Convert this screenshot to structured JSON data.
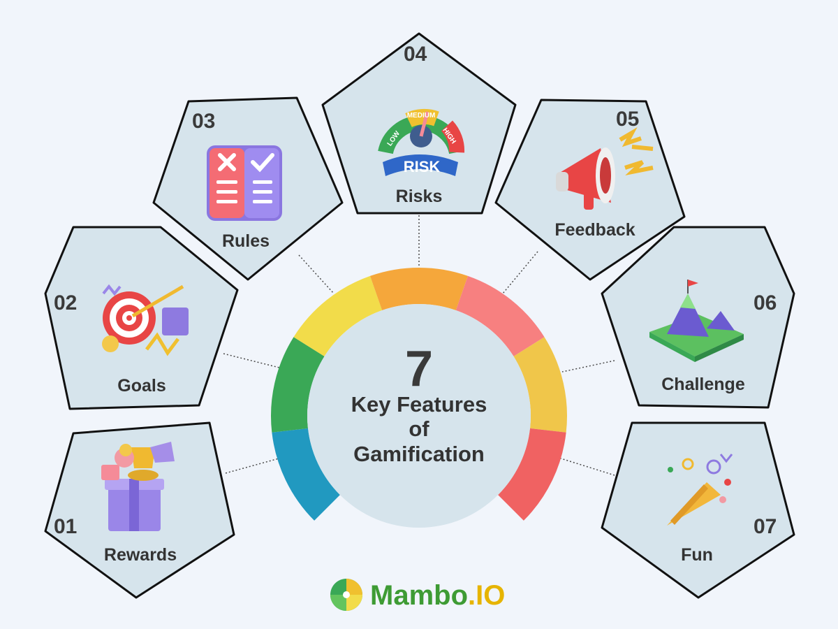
{
  "center": {
    "number": "7",
    "title_lines": [
      "Key Features",
      "of",
      "Gamification"
    ]
  },
  "features": [
    {
      "number": "01",
      "label": "Rewards",
      "icon": "gift-trophy-icon"
    },
    {
      "number": "02",
      "label": "Goals",
      "icon": "target-icon"
    },
    {
      "number": "03",
      "label": "Rules",
      "icon": "rules-board-icon"
    },
    {
      "number": "04",
      "label": "Risks",
      "icon": "risk-gauge-icon"
    },
    {
      "number": "05",
      "label": "Feedback",
      "icon": "megaphone-icon"
    },
    {
      "number": "06",
      "label": "Challenge",
      "icon": "mountain-icon"
    },
    {
      "number": "07",
      "label": "Fun",
      "icon": "party-popper-icon"
    }
  ],
  "gauge": {
    "colors": [
      "#2199c0",
      "#3aa856",
      "#f2dc4a",
      "#f5a73b",
      "#f78080",
      "#f0c64a",
      "#f06262"
    ],
    "levels": [
      "LOW",
      "MEDIUM",
      "HIGH"
    ],
    "word": "RISK"
  },
  "colors": {
    "background": "#f1f5fb",
    "pentagon_fill": "#d6e4ec",
    "pentagon_stroke": "#111111",
    "center_fill": "#d6e4ec"
  },
  "logo": {
    "name": "Mambo",
    "suffix": ".IO"
  }
}
